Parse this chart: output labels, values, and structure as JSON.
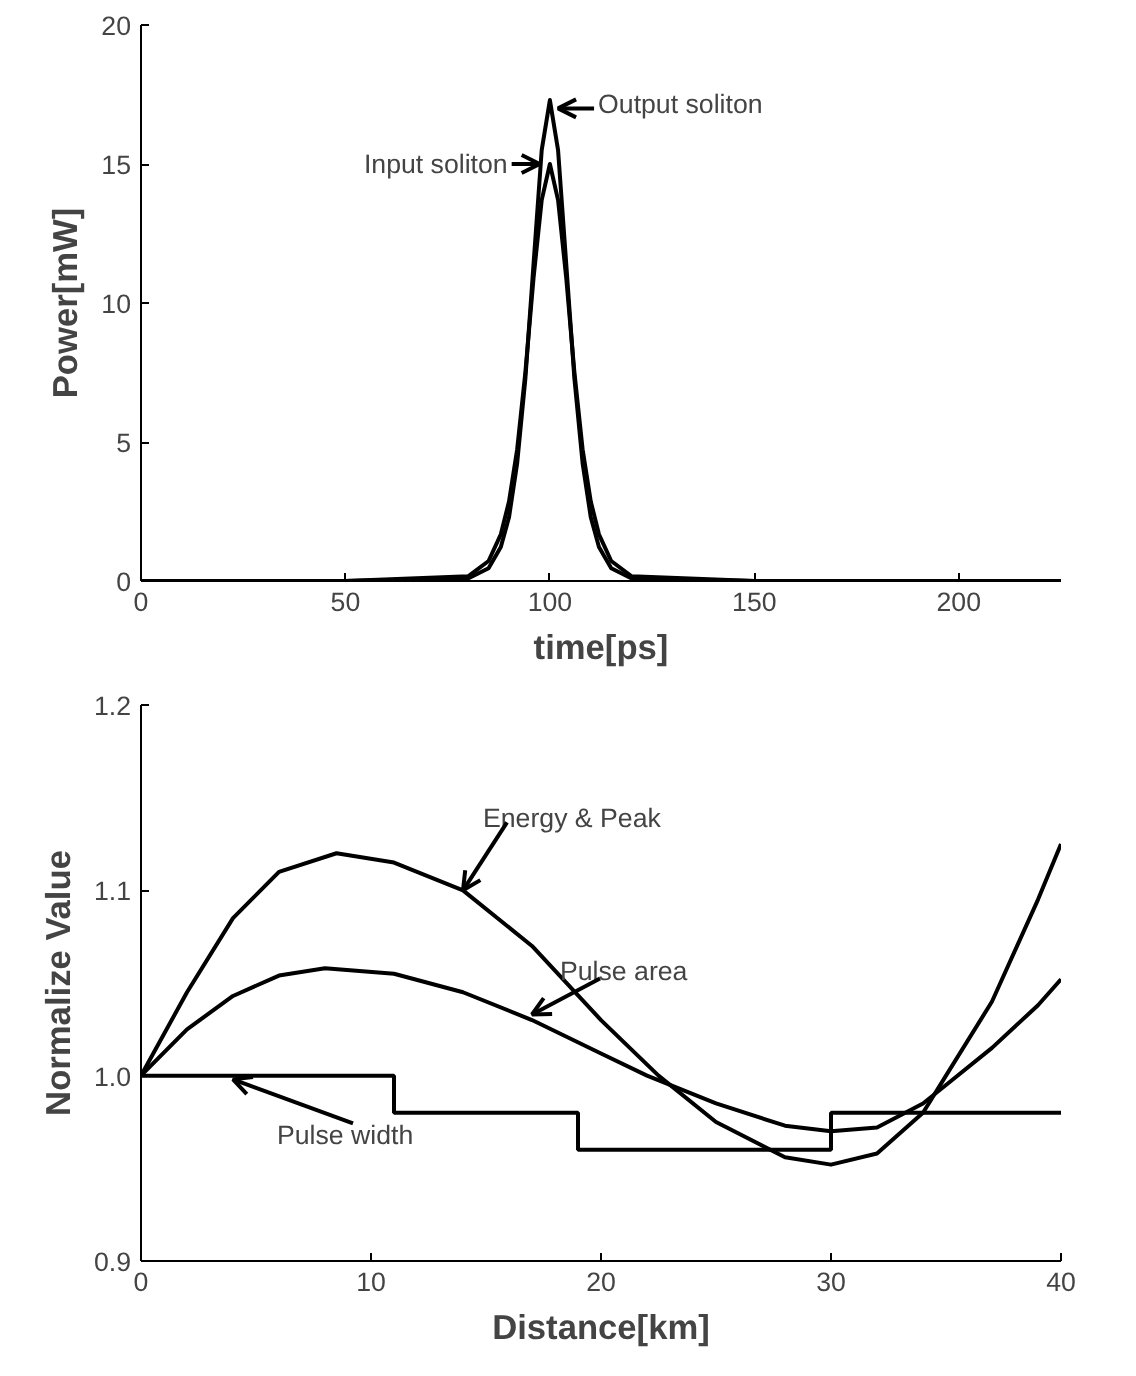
{
  "chart_data": [
    {
      "type": "line",
      "xlabel": "time[ps]",
      "ylabel": "Power[mW]",
      "xlim": [
        0,
        225
      ],
      "xticks": [
        0,
        50,
        100,
        150,
        200
      ],
      "ylim": [
        0,
        20
      ],
      "yticks": [
        0,
        5,
        10,
        15,
        20
      ],
      "grid": false,
      "series": [
        {
          "color": "#000000",
          "x": [
            0,
            50,
            80,
            85,
            88,
            90,
            92,
            94,
            96,
            98,
            100,
            102,
            104,
            106,
            108,
            110,
            112,
            115,
            120,
            150,
            225
          ],
          "values": [
            0,
            0,
            0.17,
            0.72,
            1.68,
            2.86,
            4.74,
            7.5,
            10.9,
            13.7,
            15,
            13.7,
            10.9,
            7.5,
            4.74,
            2.86,
            1.68,
            0.72,
            0.17,
            0,
            0
          ]
        },
        {
          "color": "#000000",
          "x": [
            0,
            50,
            80,
            85,
            88,
            90,
            92,
            94,
            96,
            98,
            100,
            102,
            104,
            106,
            108,
            110,
            112,
            115,
            120,
            150,
            225
          ],
          "values": [
            0,
            0,
            0.09,
            0.46,
            1.22,
            2.29,
            4.24,
            7.27,
            11.4,
            15.5,
            17.3,
            15.5,
            11.4,
            7.27,
            4.24,
            2.29,
            1.22,
            0.46,
            0.09,
            0,
            0
          ]
        }
      ],
      "annotations": [
        {
          "text": "Input soliton",
          "x": 97.5,
          "y": 15
        },
        {
          "text": "Output soliton",
          "x": 102,
          "y": 17
        }
      ]
    },
    {
      "type": "line",
      "xlabel": "Distance[km]",
      "ylabel": "Normalize Value",
      "xlim": [
        0,
        40
      ],
      "xticks": [
        0,
        10,
        20,
        30,
        40
      ],
      "ylim": [
        0.9,
        1.2
      ],
      "yticks": [
        0.9,
        {
          "value": 1,
          "label": "1.0"
        },
        1.1,
        1.2
      ],
      "grid": false,
      "series": [
        {
          "color": "#000000",
          "x": [
            0,
            2,
            4,
            6,
            8.5,
            11,
            14,
            17,
            20,
            22.5,
            25,
            28,
            30,
            32,
            34,
            35,
            37,
            39,
            40
          ],
          "values": [
            1.0,
            1.045,
            1.085,
            1.11,
            1.12,
            1.115,
            1.1,
            1.07,
            1.03,
            1.0,
            0.975,
            0.956,
            0.952,
            0.958,
            0.98,
            1.0,
            1.04,
            1.095,
            1.125
          ]
        },
        {
          "color": "#000000",
          "x": [
            0,
            2,
            4,
            6,
            8,
            11,
            14,
            17,
            20,
            22,
            25,
            28,
            30,
            32,
            34,
            35,
            37,
            39,
            40
          ],
          "values": [
            1.0,
            1.025,
            1.043,
            1.054,
            1.058,
            1.055,
            1.045,
            1.03,
            1.012,
            1.0,
            0.985,
            0.973,
            0.97,
            0.972,
            0.985,
            0.995,
            1.015,
            1.038,
            1.052
          ]
        },
        {
          "type": "step",
          "color": "#000000",
          "x": [
            0,
            11,
            19,
            30,
            40
          ],
          "values": [
            1.0,
            0.98,
            0.96,
            0.98,
            0.98
          ]
        }
      ],
      "annotations": [
        {
          "text": "Energy & Peak",
          "x": 14,
          "y": 1.1
        },
        {
          "text": "Pulse area",
          "x": 17,
          "y": 1.033
        },
        {
          "text": "Pulse width",
          "x": 4,
          "y": 0.998
        }
      ]
    }
  ]
}
